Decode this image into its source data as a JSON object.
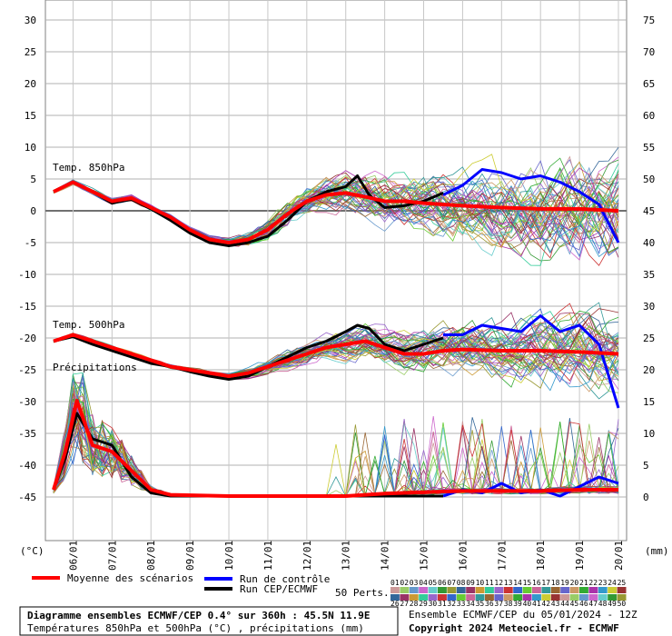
{
  "chart_data": {
    "type": "line",
    "left_axis": {
      "unit": "(°C)",
      "ticks": [
        30,
        25,
        20,
        15,
        10,
        5,
        0,
        -5,
        -10,
        -15,
        -20,
        -25,
        -30,
        -35,
        -40,
        -45
      ],
      "range": [
        -45,
        30
      ]
    },
    "right_axis": {
      "unit": "(mm)",
      "ticks": [
        75,
        70,
        65,
        60,
        55,
        50,
        45,
        40,
        35,
        30,
        25,
        20,
        15,
        10,
        5,
        0
      ]
    },
    "x_ticks": [
      "06/01",
      "07/01",
      "08/01",
      "09/01",
      "10/01",
      "11/01",
      "12/01",
      "13/01",
      "14/01",
      "15/01",
      "16/01",
      "17/01",
      "18/01",
      "19/01",
      "20/01"
    ],
    "x_range_days": [
      5.5,
      20.0
    ],
    "panel_labels": {
      "t850": "Temp. 850hPa",
      "t500": "Temp. 500hPa",
      "precip": "Précipitations"
    },
    "series": [
      {
        "name": "Moyenne des scénarios",
        "color": "#ff0000",
        "role": "mean",
        "t850": [
          [
            5.5,
            3
          ],
          [
            6.0,
            4.5
          ],
          [
            6.5,
            3
          ],
          [
            7.0,
            1.5
          ],
          [
            7.5,
            2
          ],
          [
            8.0,
            0.5
          ],
          [
            8.5,
            -1
          ],
          [
            9.0,
            -3
          ],
          [
            9.5,
            -4.5
          ],
          [
            10.0,
            -5
          ],
          [
            10.5,
            -4.5
          ],
          [
            11.0,
            -3
          ],
          [
            11.5,
            -0.5
          ],
          [
            12.0,
            1.5
          ],
          [
            12.5,
            2.5
          ],
          [
            13.0,
            2.8
          ],
          [
            13.5,
            2.2
          ],
          [
            14.0,
            1.5
          ],
          [
            14.5,
            1.5
          ],
          [
            15.0,
            1.2
          ],
          [
            15.5,
            1
          ],
          [
            16.0,
            0.8
          ],
          [
            17.0,
            0.5
          ],
          [
            18.0,
            0.3
          ],
          [
            19.0,
            0.3
          ],
          [
            20.0,
            0
          ]
        ],
        "t500": [
          [
            5.5,
            -20.5
          ],
          [
            6.0,
            -19.5
          ],
          [
            6.5,
            -20.5
          ],
          [
            7.0,
            -21.5
          ],
          [
            7.5,
            -22.5
          ],
          [
            8.0,
            -23.5
          ],
          [
            8.5,
            -24.5
          ],
          [
            9.0,
            -25
          ],
          [
            9.5,
            -25.5
          ],
          [
            10.0,
            -26
          ],
          [
            10.5,
            -25.5
          ],
          [
            11.0,
            -24.5
          ],
          [
            11.5,
            -23.5
          ],
          [
            12.0,
            -22.5
          ],
          [
            12.5,
            -21.5
          ],
          [
            13.0,
            -21
          ],
          [
            13.5,
            -20.5
          ],
          [
            14.0,
            -21.5
          ],
          [
            14.5,
            -22.5
          ],
          [
            15.0,
            -22.5
          ],
          [
            15.5,
            -22
          ],
          [
            16.0,
            -21.8
          ],
          [
            17.0,
            -22
          ],
          [
            18.0,
            -22
          ],
          [
            19.0,
            -22.2
          ],
          [
            20.0,
            -22.5
          ]
        ],
        "precip_mm": [
          [
            5.5,
            1
          ],
          [
            5.8,
            7
          ],
          [
            6.1,
            15
          ],
          [
            6.5,
            8
          ],
          [
            7.0,
            7
          ],
          [
            7.5,
            4
          ],
          [
            8.0,
            1
          ],
          [
            8.5,
            0.2
          ],
          [
            10.0,
            0
          ],
          [
            12.0,
            0
          ],
          [
            13.0,
            0
          ],
          [
            14.0,
            0.4
          ],
          [
            15.0,
            0.6
          ],
          [
            16.0,
            0.8
          ],
          [
            17.0,
            0.8
          ],
          [
            18.0,
            0.8
          ],
          [
            19.0,
            1
          ],
          [
            20.0,
            1
          ]
        ]
      },
      {
        "name": "Run de contrôle",
        "color": "#0000ff",
        "role": "control",
        "t850": [
          [
            15.5,
            2.5
          ],
          [
            16.0,
            4
          ],
          [
            16.5,
            6.5
          ],
          [
            17.0,
            6
          ],
          [
            17.5,
            5
          ],
          [
            18.0,
            5.5
          ],
          [
            18.5,
            4.5
          ],
          [
            19.0,
            3
          ],
          [
            19.5,
            1
          ],
          [
            20.0,
            -5
          ]
        ],
        "t500": [
          [
            15.5,
            -19.5
          ],
          [
            16.0,
            -19.5
          ],
          [
            16.5,
            -18
          ],
          [
            17.0,
            -18.5
          ],
          [
            17.5,
            -19
          ],
          [
            18.0,
            -16.5
          ],
          [
            18.5,
            -19
          ],
          [
            19.0,
            -18
          ],
          [
            19.5,
            -21
          ],
          [
            20.0,
            -31
          ]
        ],
        "precip_mm": [
          [
            15.5,
            0
          ],
          [
            16.0,
            1
          ],
          [
            16.5,
            0.5
          ],
          [
            17.0,
            2
          ],
          [
            17.5,
            0.5
          ],
          [
            18.0,
            1
          ],
          [
            18.5,
            0
          ],
          [
            19.0,
            1.5
          ],
          [
            19.5,
            3
          ],
          [
            20.0,
            2
          ]
        ]
      },
      {
        "name": "Run CEP/ECMWF",
        "color": "#000000",
        "role": "operational",
        "t850": [
          [
            5.5,
            3
          ],
          [
            6.0,
            4.5
          ],
          [
            6.5,
            3
          ],
          [
            7.0,
            1.2
          ],
          [
            7.5,
            1.8
          ],
          [
            8.0,
            0.3
          ],
          [
            8.5,
            -1.5
          ],
          [
            9.0,
            -3.5
          ],
          [
            9.5,
            -5
          ],
          [
            10.0,
            -5.5
          ],
          [
            10.5,
            -5
          ],
          [
            11.0,
            -4
          ],
          [
            11.5,
            -1.5
          ],
          [
            12.0,
            1.5
          ],
          [
            12.5,
            3
          ],
          [
            13.0,
            3.8
          ],
          [
            13.3,
            5.5
          ],
          [
            13.6,
            2.5
          ],
          [
            14.0,
            0.5
          ],
          [
            14.5,
            0.8
          ],
          [
            15.0,
            1.5
          ],
          [
            15.5,
            2.8
          ]
        ],
        "t500": [
          [
            5.5,
            -20.5
          ],
          [
            6.0,
            -19.8
          ],
          [
            6.5,
            -21
          ],
          [
            7.0,
            -22
          ],
          [
            7.5,
            -23
          ],
          [
            8.0,
            -24
          ],
          [
            8.5,
            -24.5
          ],
          [
            9.0,
            -25.3
          ],
          [
            9.5,
            -26
          ],
          [
            10.0,
            -26.5
          ],
          [
            10.5,
            -26
          ],
          [
            11.0,
            -24.5
          ],
          [
            11.5,
            -23
          ],
          [
            12.0,
            -21.5
          ],
          [
            12.5,
            -20.5
          ],
          [
            13.0,
            -19
          ],
          [
            13.3,
            -18
          ],
          [
            13.6,
            -18.5
          ],
          [
            14.0,
            -21
          ],
          [
            14.5,
            -22
          ],
          [
            15.0,
            -21
          ],
          [
            15.5,
            -20
          ]
        ],
        "precip_mm": [
          [
            5.5,
            1
          ],
          [
            5.8,
            6
          ],
          [
            6.1,
            13
          ],
          [
            6.5,
            9
          ],
          [
            7.0,
            8
          ],
          [
            7.5,
            3
          ],
          [
            8.0,
            0.5
          ],
          [
            8.5,
            0
          ],
          [
            15.5,
            0
          ]
        ]
      }
    ],
    "perturbations": {
      "label": "50 Perts.",
      "count": 50,
      "row1": [
        "01",
        "02",
        "03",
        "04",
        "05",
        "06",
        "07",
        "08",
        "09",
        "10",
        "11",
        "12",
        "13",
        "14",
        "15",
        "16",
        "17",
        "18",
        "19",
        "20",
        "21",
        "22",
        "23",
        "24",
        "25"
      ],
      "row2": [
        "26",
        "27",
        "28",
        "29",
        "30",
        "31",
        "32",
        "33",
        "34",
        "35",
        "36",
        "37",
        "38",
        "39",
        "40",
        "41",
        "42",
        "43",
        "44",
        "45",
        "46",
        "47",
        "48",
        "49",
        "50"
      ],
      "colors": [
        "#cc9999",
        "#99cc66",
        "#6699cc",
        "#cc66cc",
        "#66cccc",
        "#339933",
        "#999933",
        "#336699",
        "#993366",
        "#cc9933",
        "#33cc99",
        "#9966cc",
        "#cc3333",
        "#3366cc",
        "#66cc33",
        "#cc6699",
        "#339999",
        "#996633",
        "#6666cc",
        "#cc9966",
        "#33aa33",
        "#aa33aa",
        "#3399cc",
        "#cccc33",
        "#993333"
      ]
    },
    "grid": true
  },
  "legend": {
    "mean_label": "Moyenne des scénarios",
    "control_label": "Run de contrôle",
    "oper_label": "Run CEP/ECMWF",
    "perts_label": "50 Perts."
  },
  "footer": {
    "title": "Diagramme ensembles ECMWF/CEP 0.4° sur 360h : 45.5N 11.9E",
    "subtitle": "Températures 850hPa et 500hPa (°C) , précipitations (mm)",
    "run_info": "Ensemble ECMWF/CEP du 05/01/2024 - 12Z",
    "copyright": "Copyright 2024 Meteociel.fr - ECMWF"
  }
}
